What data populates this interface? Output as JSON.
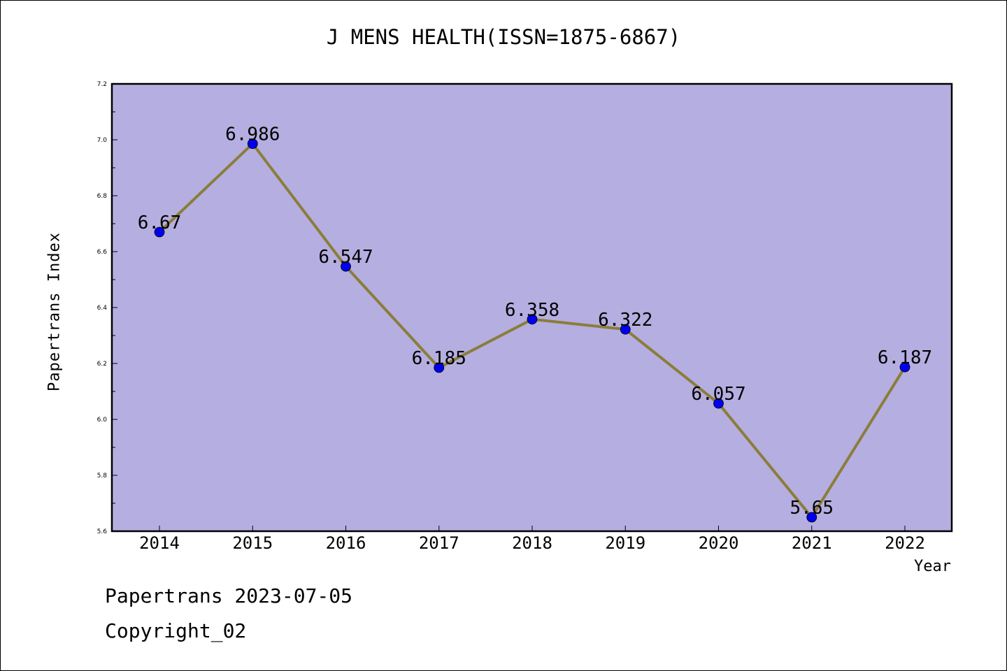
{
  "chart_data": {
    "type": "line",
    "title": "J MENS HEALTH(ISSN=1875-6867)",
    "xlabel": "Year",
    "ylabel": "Papertrans Index",
    "categories": [
      "2014",
      "2015",
      "2016",
      "2017",
      "2018",
      "2019",
      "2020",
      "2021",
      "2022"
    ],
    "values": [
      6.67,
      6.986,
      6.547,
      6.185,
      6.358,
      6.322,
      6.057,
      5.65,
      6.187
    ],
    "data_labels": [
      "6.67",
      "6.986",
      "6.547",
      "6.185",
      "6.358",
      "6.322",
      "6.057",
      "5.65",
      "6.187"
    ],
    "ylim": [
      5.6,
      7.2
    ],
    "y_ticks": [
      "5.6",
      "5.8",
      "6.0",
      "6.2",
      "6.4",
      "6.6",
      "6.8",
      "7.0",
      "7.2"
    ],
    "grid": false,
    "legend": "none",
    "colors": {
      "plot_background": "#b5aee1",
      "line": "#8b7d3a",
      "marker": "#0000ee"
    }
  },
  "footer": {
    "line1": "Papertrans 2023-07-05",
    "line2": "Copyright_02"
  }
}
